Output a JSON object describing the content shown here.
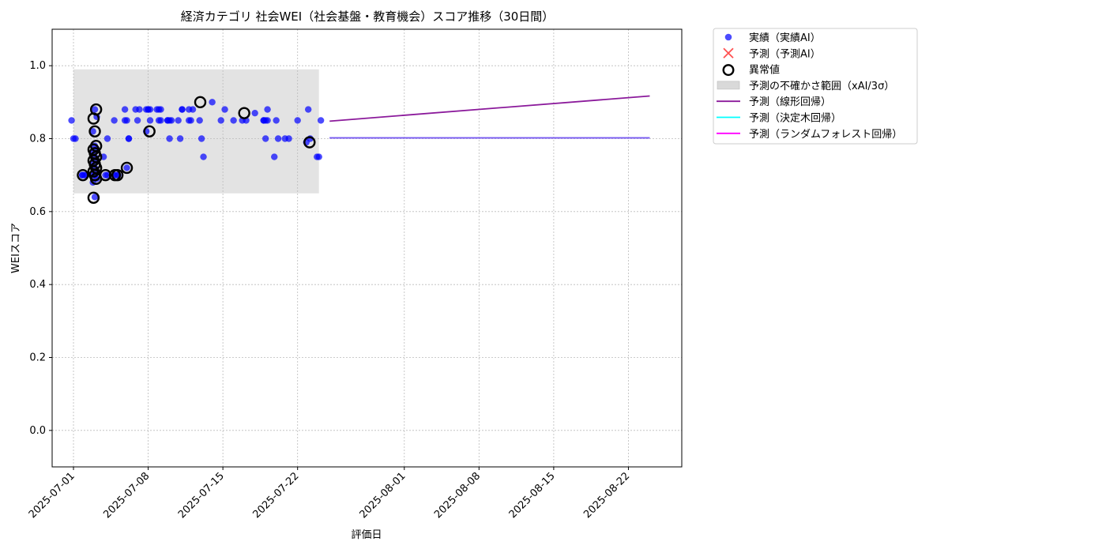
{
  "chart_data": {
    "type": "scatter",
    "title": "経済カテゴリ 社会WEI（社会基盤・教育機会）スコア推移（30日間）",
    "xlabel": "評価日",
    "ylabel": "WEIスコア",
    "ylim": [
      -0.1,
      1.1
    ],
    "yticks": [
      0.0,
      0.2,
      0.4,
      0.6,
      0.8,
      1.0
    ],
    "ytick_labels": [
      "0.0",
      "0.2",
      "0.4",
      "0.6",
      "0.8",
      "1.0"
    ],
    "xlim": [
      "2025-06-29",
      "2025-08-27"
    ],
    "xticks": [
      "2025-07-01",
      "2025-07-08",
      "2025-07-15",
      "2025-07-22",
      "2025-08-01",
      "2025-08-08",
      "2025-08-15",
      "2025-08-22"
    ],
    "grid": true,
    "legend_position": "outside-top-right",
    "legend": [
      {
        "key": "actual",
        "label": "実績（実績AI）",
        "marker": "dot",
        "color": "#0000ff"
      },
      {
        "key": "predicted",
        "label": "予測（予測AI）",
        "marker": "x",
        "color": "#ff3333"
      },
      {
        "key": "anomaly",
        "label": "異常値",
        "marker": "ring",
        "color": "#000000"
      },
      {
        "key": "band",
        "label": "予測の不確かさ範囲（xAI/3σ）",
        "marker": "patch",
        "color": "#d9d9d9"
      },
      {
        "key": "linear",
        "label": "予測（線形回帰）",
        "marker": "line",
        "color": "#8b1a9b"
      },
      {
        "key": "tree",
        "label": "予測（決定木回帰）",
        "marker": "line",
        "color": "#00ffff"
      },
      {
        "key": "forest",
        "label": "予測（ランダムフォレスト回帰）",
        "marker": "line",
        "color": "#ff00ff"
      }
    ],
    "uncertainty_band": {
      "x": [
        "2025-07-01",
        "2025-07-24"
      ],
      "y": [
        0.65,
        0.99
      ]
    },
    "actual": {
      "name": "実績（実績AI）",
      "x": [
        "2025-07-01",
        "2025-07-01",
        "2025-07-01",
        "2025-07-02",
        "2025-07-02",
        "2025-07-02",
        "2025-07-02",
        "2025-07-03",
        "2025-07-03",
        "2025-07-03",
        "2025-07-03",
        "2025-07-03",
        "2025-07-03",
        "2025-07-03",
        "2025-07-03",
        "2025-07-03",
        "2025-07-03",
        "2025-07-03",
        "2025-07-03",
        "2025-07-03",
        "2025-07-03",
        "2025-07-03",
        "2025-07-03",
        "2025-07-04",
        "2025-07-04",
        "2025-07-04",
        "2025-07-04",
        "2025-07-05",
        "2025-07-05",
        "2025-07-05",
        "2025-07-05",
        "2025-07-06",
        "2025-07-06",
        "2025-07-06",
        "2025-07-06",
        "2025-07-06",
        "2025-07-06",
        "2025-07-07",
        "2025-07-07",
        "2025-07-07",
        "2025-07-08",
        "2025-07-08",
        "2025-07-08",
        "2025-07-08",
        "2025-07-08",
        "2025-07-08",
        "2025-07-09",
        "2025-07-09",
        "2025-07-09",
        "2025-07-09",
        "2025-07-09",
        "2025-07-10",
        "2025-07-10",
        "2025-07-10",
        "2025-07-10",
        "2025-07-10",
        "2025-07-11",
        "2025-07-11",
        "2025-07-11",
        "2025-07-11",
        "2025-07-12",
        "2025-07-12",
        "2025-07-12",
        "2025-07-12",
        "2025-07-13",
        "2025-07-13",
        "2025-07-13",
        "2025-07-14",
        "2025-07-15",
        "2025-07-15",
        "2025-07-16",
        "2025-07-17",
        "2025-07-17",
        "2025-07-18",
        "2025-07-19",
        "2025-07-19",
        "2025-07-19",
        "2025-07-19",
        "2025-07-19",
        "2025-07-19",
        "2025-07-20",
        "2025-07-20",
        "2025-07-20",
        "2025-07-21",
        "2025-07-21",
        "2025-07-22",
        "2025-07-23",
        "2025-07-23",
        "2025-07-23",
        "2025-07-24",
        "2025-07-24",
        "2025-07-24"
      ],
      "y": [
        0.85,
        0.8,
        0.8,
        0.7,
        0.7,
        0.7,
        0.7,
        0.88,
        0.86,
        0.82,
        0.78,
        0.77,
        0.76,
        0.75,
        0.74,
        0.73,
        0.72,
        0.71,
        0.7,
        0.7,
        0.69,
        0.68,
        0.64,
        0.8,
        0.75,
        0.7,
        0.7,
        0.7,
        0.7,
        0.7,
        0.85,
        0.72,
        0.8,
        0.88,
        0.85,
        0.8,
        0.85,
        0.85,
        0.88,
        0.88,
        0.88,
        0.85,
        0.82,
        0.88,
        0.88,
        0.88,
        0.85,
        0.85,
        0.88,
        0.88,
        0.88,
        0.85,
        0.8,
        0.85,
        0.85,
        0.85,
        0.88,
        0.85,
        0.8,
        0.88,
        0.85,
        0.85,
        0.88,
        0.88,
        0.8,
        0.75,
        0.85,
        0.9,
        0.88,
        0.85,
        0.85,
        0.85,
        0.85,
        0.87,
        0.85,
        0.85,
        0.85,
        0.88,
        0.85,
        0.8,
        0.8,
        0.75,
        0.85,
        0.8,
        0.8,
        0.85,
        0.8,
        0.79,
        0.88,
        0.85,
        0.75,
        0.75
      ]
    },
    "anomalies": {
      "name": "異常値",
      "x": [
        "2025-07-02",
        "2025-07-03",
        "2025-07-03",
        "2025-07-03",
        "2025-07-03",
        "2025-07-03",
        "2025-07-03",
        "2025-07-03",
        "2025-07-03",
        "2025-07-03",
        "2025-07-03",
        "2025-07-03",
        "2025-07-03",
        "2025-07-03",
        "2025-07-03",
        "2025-07-03",
        "2025-07-04",
        "2025-07-05",
        "2025-07-05",
        "2025-07-06",
        "2025-07-08",
        "2025-07-13",
        "2025-07-17",
        "2025-07-23"
      ],
      "y": [
        0.7,
        0.7,
        0.88,
        0.855,
        0.82,
        0.78,
        0.77,
        0.76,
        0.75,
        0.74,
        0.73,
        0.72,
        0.71,
        0.7,
        0.69,
        0.638,
        0.7,
        0.7,
        0.7,
        0.72,
        0.82,
        0.9,
        0.87,
        0.79
      ]
    },
    "linear": {
      "name": "予測（線形回帰）",
      "x": [
        "2025-07-25",
        "2025-08-24"
      ],
      "y": [
        0.848,
        0.917
      ]
    },
    "tree": {
      "name": "予測（決定木回帰）",
      "x": [
        "2025-07-25",
        "2025-08-24"
      ],
      "y": [
        0.802,
        0.802
      ]
    },
    "forest": {
      "name": "予測（ランダムフォレスト回帰）",
      "x": [
        "2025-07-25",
        "2025-08-24"
      ],
      "y": [
        0.802,
        0.802
      ]
    }
  }
}
